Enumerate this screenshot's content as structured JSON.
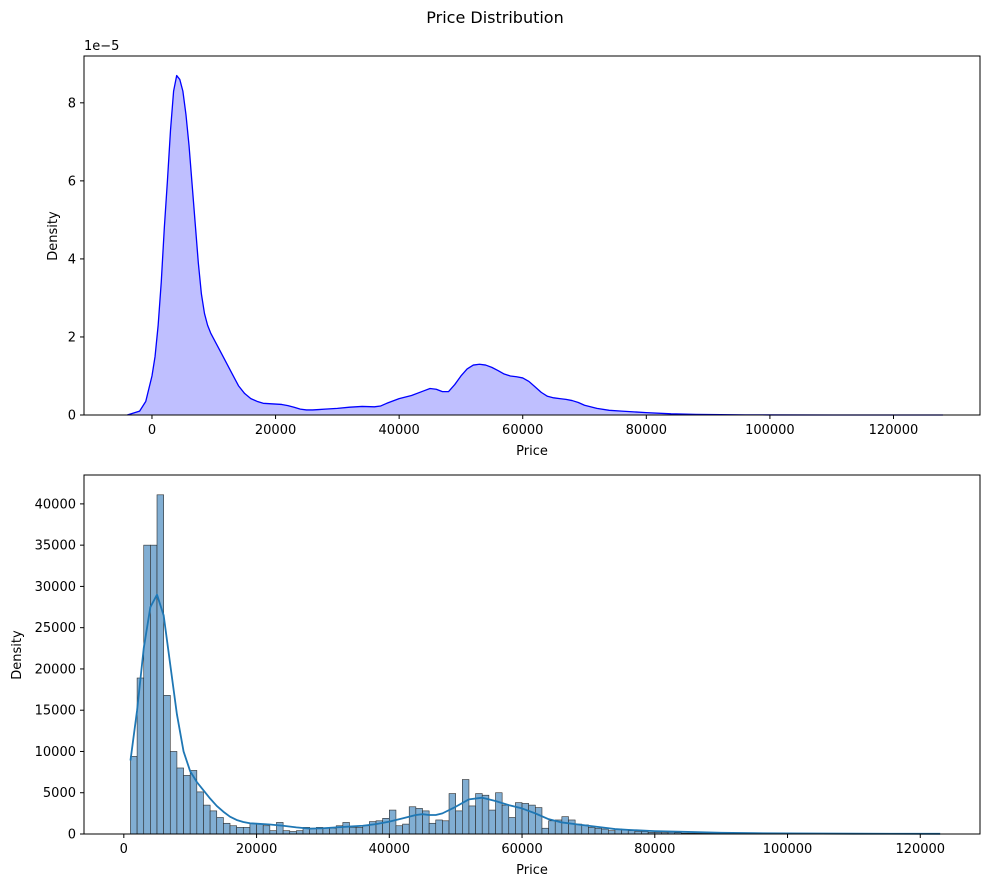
{
  "figure": {
    "suptitle": "Price Distribution"
  },
  "chart_data": [
    {
      "type": "area",
      "title": "",
      "xlabel": "Price",
      "ylabel": "Density",
      "scale_label": "1e−5",
      "xlim": [
        -11000,
        134000
      ],
      "ylim": [
        0,
        9.2
      ],
      "xticks": [
        0,
        20000,
        40000,
        60000,
        80000,
        100000,
        120000
      ],
      "xtick_labels": [
        "0",
        "20000",
        "40000",
        "60000",
        "80000",
        "100000",
        "120000"
      ],
      "yticks": [
        0,
        2,
        4,
        6,
        8
      ],
      "ytick_labels": [
        "0",
        "2",
        "4",
        "6",
        "8"
      ],
      "colors": {
        "line": "#0000ff",
        "fill": "#bfbfff"
      },
      "series": [
        {
          "name": "kde",
          "x": [
            -4000,
            -2000,
            -1000,
            0,
            500,
            1000,
            1500,
            2000,
            2500,
            3000,
            3500,
            4000,
            4500,
            5000,
            5500,
            6000,
            6500,
            7000,
            7500,
            8000,
            8500,
            9000,
            9500,
            10000,
            11000,
            12000,
            13000,
            14000,
            15000,
            16000,
            17000,
            18000,
            19000,
            20000,
            21000,
            22000,
            23000,
            24000,
            25000,
            26000,
            27000,
            28000,
            30000,
            32000,
            34000,
            36000,
            37000,
            38000,
            40000,
            42000,
            44000,
            45000,
            46000,
            47000,
            48000,
            49000,
            50000,
            51000,
            52000,
            53000,
            54000,
            55000,
            56000,
            57000,
            58000,
            59000,
            60000,
            61000,
            62000,
            63000,
            64000,
            65000,
            66000,
            67000,
            68000,
            69000,
            70000,
            72000,
            74000,
            76000,
            78000,
            80000,
            84000,
            88000,
            92000,
            96000,
            100000,
            110000,
            120000,
            128000
          ],
          "y": [
            0,
            0.1,
            0.35,
            1.0,
            1.5,
            2.3,
            3.4,
            4.8,
            6.0,
            7.3,
            8.3,
            8.7,
            8.6,
            8.3,
            7.7,
            6.9,
            5.9,
            4.9,
            3.9,
            3.1,
            2.6,
            2.3,
            2.1,
            1.95,
            1.65,
            1.35,
            1.05,
            0.75,
            0.55,
            0.42,
            0.35,
            0.3,
            0.29,
            0.28,
            0.27,
            0.24,
            0.2,
            0.15,
            0.13,
            0.13,
            0.14,
            0.15,
            0.17,
            0.2,
            0.22,
            0.21,
            0.23,
            0.3,
            0.42,
            0.5,
            0.62,
            0.68,
            0.66,
            0.6,
            0.6,
            0.78,
            1.0,
            1.18,
            1.28,
            1.3,
            1.28,
            1.22,
            1.14,
            1.05,
            1.0,
            0.98,
            0.95,
            0.86,
            0.72,
            0.58,
            0.48,
            0.44,
            0.42,
            0.4,
            0.37,
            0.32,
            0.25,
            0.17,
            0.12,
            0.1,
            0.08,
            0.06,
            0.03,
            0.015,
            0.008,
            0.004,
            0.002,
            0,
            0,
            0
          ]
        }
      ]
    },
    {
      "type": "bar",
      "title": "",
      "xlabel": "Price",
      "ylabel": "Density",
      "xlim": [
        -6000,
        129000
      ],
      "ylim": [
        0,
        43500
      ],
      "xticks": [
        0,
        20000,
        40000,
        60000,
        80000,
        100000,
        120000
      ],
      "xtick_labels": [
        "0",
        "20000",
        "40000",
        "60000",
        "80000",
        "100000",
        "120000"
      ],
      "yticks": [
        0,
        5000,
        10000,
        15000,
        20000,
        25000,
        30000,
        35000,
        40000
      ],
      "ytick_labels": [
        "0",
        "5000",
        "10000",
        "15000",
        "20000",
        "25000",
        "30000",
        "35000",
        "40000"
      ],
      "colors": {
        "bar_fill": "#81aed3",
        "bar_edge": "#2a2a2a",
        "kde_line": "#1f77b4"
      },
      "bin_start": 1000,
      "bin_width": 1000,
      "values": [
        9400,
        18900,
        35000,
        35000,
        41100,
        16800,
        10000,
        8000,
        7100,
        7700,
        5100,
        3500,
        2800,
        2000,
        1300,
        1000,
        800,
        800,
        1300,
        1200,
        1000,
        400,
        1400,
        400,
        300,
        400,
        800,
        700,
        800,
        700,
        700,
        1000,
        1400,
        800,
        800,
        1000,
        1500,
        1600,
        1900,
        2900,
        1000,
        1200,
        3300,
        3100,
        2800,
        1300,
        1700,
        1600,
        4900,
        2800,
        6600,
        3400,
        4900,
        4700,
        2900,
        5000,
        3500,
        2000,
        3800,
        3700,
        3500,
        3200,
        700,
        1600,
        1700,
        2100,
        1700,
        1200,
        1100,
        800,
        700,
        600,
        400,
        600,
        500,
        400,
        300,
        300,
        200,
        200,
        150,
        200,
        150,
        100,
        100,
        100,
        80,
        80,
        70,
        60,
        50,
        50,
        40,
        40,
        30,
        30,
        30,
        30,
        20,
        20,
        20,
        20,
        20,
        20,
        20,
        20,
        20,
        20,
        20,
        20,
        20,
        20,
        20,
        20,
        20,
        20,
        20,
        20,
        20,
        20,
        20,
        20
      ],
      "kde": {
        "x": [
          1000,
          2000,
          3000,
          4000,
          5000,
          6000,
          7000,
          8000,
          9000,
          10000,
          11000,
          12000,
          13000,
          14000,
          15000,
          16000,
          17000,
          18000,
          19000,
          20000,
          22000,
          24000,
          26000,
          28000,
          30000,
          32000,
          34000,
          36000,
          38000,
          40000,
          42000,
          44000,
          45000,
          46000,
          47000,
          48000,
          50000,
          52000,
          54000,
          56000,
          58000,
          60000,
          62000,
          64000,
          66000,
          68000,
          70000,
          72000,
          74000,
          76000,
          80000,
          85000,
          90000,
          95000,
          100000,
          110000,
          123000
        ],
        "y": [
          8900,
          15000,
          22500,
          27500,
          29000,
          26500,
          20500,
          14500,
          10000,
          7600,
          6300,
          5300,
          4300,
          3400,
          2700,
          2100,
          1700,
          1450,
          1300,
          1250,
          1150,
          1000,
          800,
          650,
          700,
          800,
          900,
          1000,
          1200,
          1500,
          1900,
          2300,
          2400,
          2300,
          2300,
          2500,
          3300,
          4200,
          4400,
          4000,
          3500,
          3100,
          2500,
          1800,
          1400,
          1200,
          1000,
          800,
          600,
          500,
          350,
          250,
          150,
          100,
          70,
          40,
          20
        ]
      }
    }
  ]
}
